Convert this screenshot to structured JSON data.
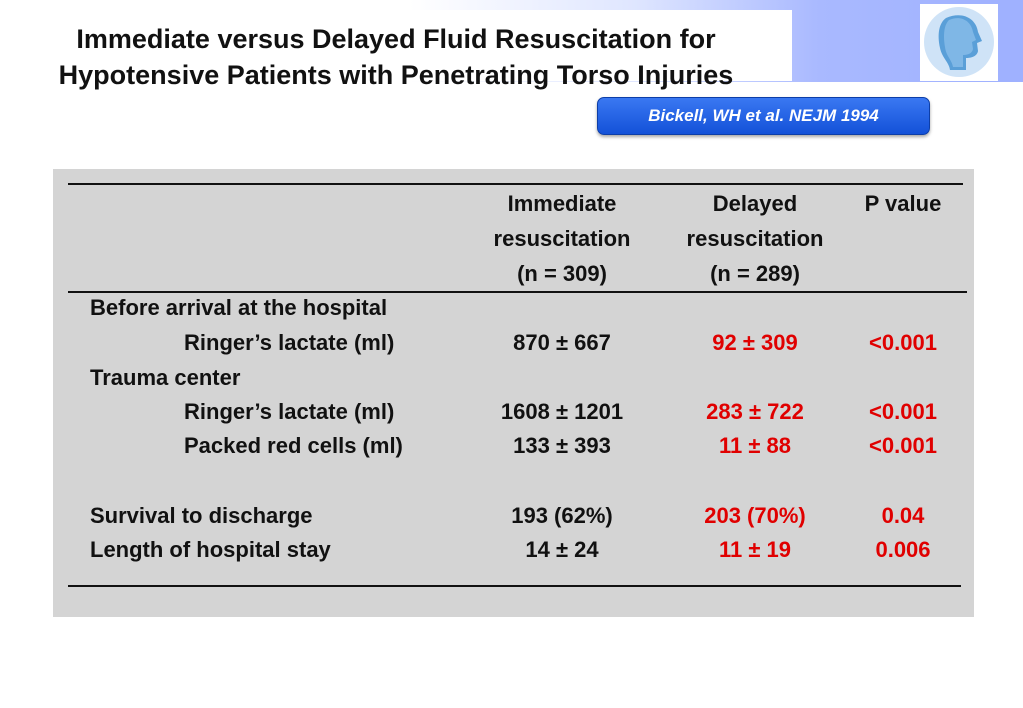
{
  "slide": {
    "title_line1": "Immediate versus Delayed Fluid Resuscitation for",
    "title_line2": "Hypotensive Patients with Penetrating Torso Injuries",
    "citation": "Bickell, WH et al. NEJM 1994"
  },
  "colors": {
    "highlight": "#e00000",
    "citation_button": "#1f5fe0",
    "header_gradient_end": "#9fb1ff",
    "panel": "#d4d4d4"
  },
  "table": {
    "headers": {
      "immediate": [
        "Immediate",
        "resuscitation",
        "(n = 309)"
      ],
      "delayed": [
        "Delayed",
        "resuscitation",
        "(n = 289)"
      ],
      "pvalue": "P value"
    },
    "sections": {
      "before_arrival": "Before arrival at the hospital",
      "trauma_center": "Trauma center"
    },
    "rows": [
      {
        "label": "Ringer’s lactate (ml)",
        "immediate": "870 ±  667",
        "delayed": "92 ±  309",
        "p": "<0.001"
      },
      {
        "label": "Ringer’s lactate (ml)",
        "immediate": "1608 ± 1201",
        "delayed": "283 ±  722",
        "p": "<0.001"
      },
      {
        "label": "Packed red cells (ml)",
        "immediate": "133 ± 393",
        "delayed": "11 ±  88",
        "p": "<0.001"
      },
      {
        "label": "Survival to discharge",
        "immediate": "193 (62%)",
        "delayed": "203 (70%)",
        "p": "0.04"
      },
      {
        "label": "Length of hospital stay",
        "immediate": "14 ± 24",
        "delayed": "11 ± 19",
        "p": "0.006"
      }
    ]
  }
}
